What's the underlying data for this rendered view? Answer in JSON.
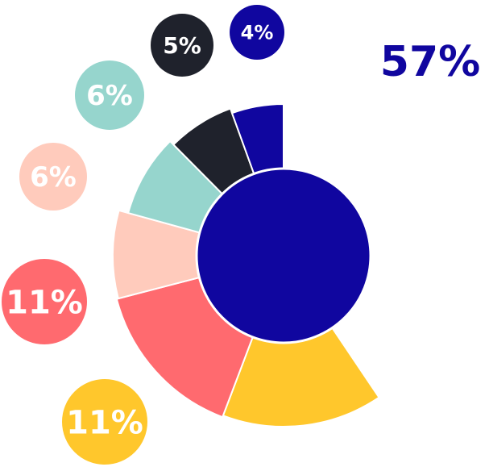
{
  "chart_data": {
    "type": "pie",
    "slices": [
      {
        "value": 57,
        "label": "57%",
        "color": "#10069f"
      },
      {
        "value": 11,
        "label": "11%",
        "color": "#ffc72c"
      },
      {
        "value": 11,
        "label": "11%",
        "color": "#ff6a6f"
      },
      {
        "value": 6,
        "label": "6%",
        "color": "#ffcbbc"
      },
      {
        "value": 6,
        "label": "6%",
        "color": "#96d5cd"
      },
      {
        "value": 5,
        "label": "5%",
        "color": "#1f222c"
      },
      {
        "value": 4,
        "label": "4%",
        "color": "#10069f"
      }
    ],
    "title": "",
    "legend": "none"
  }
}
